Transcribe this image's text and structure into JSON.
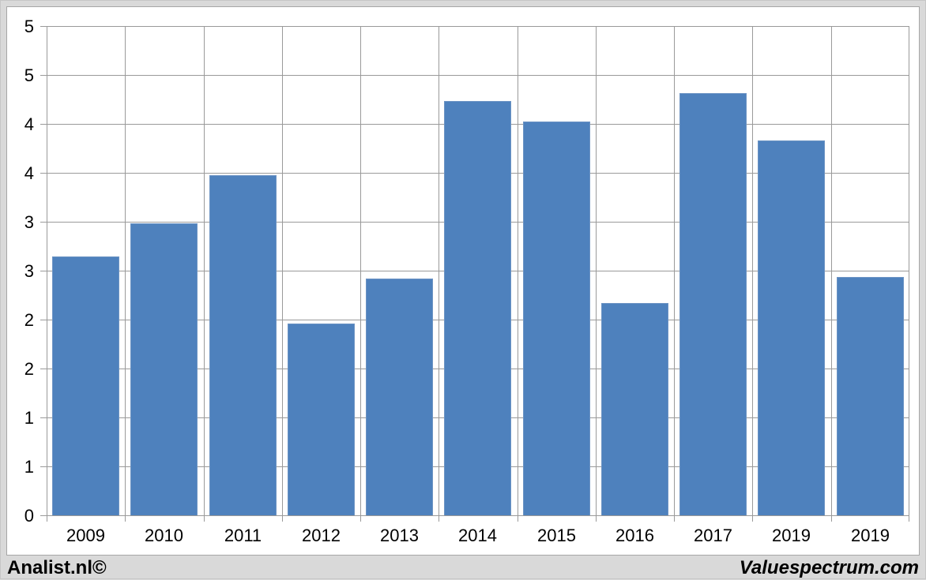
{
  "branding": {
    "left": "Analist.nl©",
    "right": "Valuespectrum.com"
  },
  "chart_data": {
    "type": "bar",
    "title": "",
    "xlabel": "",
    "ylabel": "",
    "categories": [
      "2009",
      "2010",
      "2011",
      "2012",
      "2013",
      "2014",
      "2015",
      "2016",
      "2017",
      "2019",
      "2019"
    ],
    "values": [
      2.65,
      2.99,
      3.48,
      1.97,
      2.43,
      4.24,
      4.03,
      2.18,
      4.32,
      3.84,
      2.44
    ],
    "ylim": [
      0,
      5
    ],
    "y_tick_step": 0.5,
    "y_ticks": [
      {
        "value": 0.0,
        "label": "0"
      },
      {
        "value": 0.5,
        "label": "1"
      },
      {
        "value": 1.0,
        "label": "1"
      },
      {
        "value": 1.5,
        "label": "2"
      },
      {
        "value": 2.0,
        "label": "2"
      },
      {
        "value": 2.5,
        "label": "3"
      },
      {
        "value": 3.0,
        "label": "3"
      },
      {
        "value": 3.5,
        "label": "4"
      },
      {
        "value": 4.0,
        "label": "4"
      },
      {
        "value": 4.5,
        "label": "5"
      },
      {
        "value": 5.0,
        "label": "5"
      }
    ],
    "grid": true,
    "legend": false,
    "legend_position": "none",
    "colors": {
      "bar_fill": "#4e81bd",
      "bar_border": "#6d94c4",
      "gridline": "#9a9a9a",
      "plot_bg": "#ffffff",
      "page_bg": "#d9d9d9",
      "panel_border": "#a6a6a6",
      "text": "#000000"
    }
  }
}
